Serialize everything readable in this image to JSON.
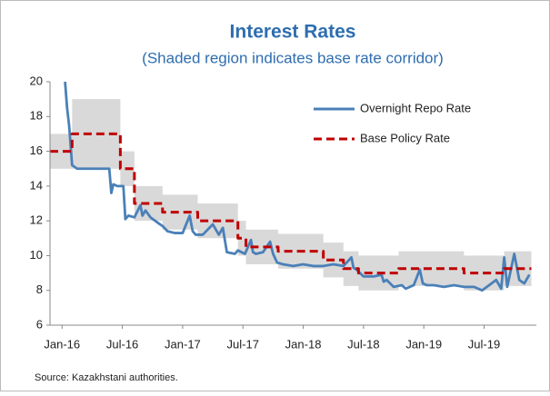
{
  "chart_data": {
    "type": "line",
    "title": "Interest Rates",
    "subtitle": "(Shaded region indicates base rate corridor)",
    "source": "Source: Kazakhstani authorities.",
    "xlim": [
      -1.2,
      47.2
    ],
    "xticks": [
      {
        "value": 0,
        "label": "Jan-16"
      },
      {
        "value": 6,
        "label": "Jul-16"
      },
      {
        "value": 12,
        "label": "Jan-17"
      },
      {
        "value": 18,
        "label": "Jul-17"
      },
      {
        "value": 24,
        "label": "Jan-18"
      },
      {
        "value": 30,
        "label": "Jul-18"
      },
      {
        "value": 36,
        "label": "Jan-19"
      },
      {
        "value": 42,
        "label": "Jul-19"
      }
    ],
    "ylim": [
      6,
      20
    ],
    "yticks": [
      6,
      8,
      10,
      12,
      14,
      16,
      18,
      20
    ],
    "legend": "upper right",
    "corridor": {
      "color": "#d9d9d9",
      "step": "post",
      "x": [
        -1.2,
        1,
        5.8,
        7.2,
        10,
        13.5,
        17.5,
        18.3,
        21.5,
        26,
        28,
        29.5,
        33.5,
        40,
        44,
        46.7
      ],
      "lower": [
        15,
        15,
        14,
        12,
        11.5,
        11,
        10,
        9.5,
        9.25,
        8.75,
        8.25,
        8,
        8.25,
        8,
        8.25,
        8.25
      ],
      "upper": [
        17,
        19,
        16,
        14,
        13.5,
        13,
        12,
        11.5,
        11.25,
        10.75,
        10.25,
        10,
        10.25,
        10,
        10.25,
        10.25
      ]
    },
    "series": [
      {
        "name": "Overnight Repo Rate",
        "color": "#4a80b8",
        "x": [
          0.3,
          0.5,
          0.7,
          1.0,
          1.5,
          3,
          4.7,
          4.9,
          5.1,
          5.5,
          6.1,
          6.3,
          6.6,
          7.2,
          7.8,
          8.0,
          8.3,
          8.8,
          9.5,
          10.0,
          10.5,
          11.2,
          12.0,
          12.7,
          13.0,
          13.3,
          14.0,
          15.0,
          15.6,
          16.0,
          16.4,
          17.2,
          17.5,
          18.2,
          18.8,
          19.0,
          19.3,
          20.0,
          20.7,
          21.0,
          21.4,
          22.0,
          23.0,
          24.0,
          25.0,
          26.0,
          27.0,
          28.0,
          28.8,
          29.0,
          29.3,
          30.0,
          31.0,
          31.8,
          32.0,
          32.3,
          33.0,
          33.8,
          34.2,
          35.0,
          35.6,
          35.9,
          36.3,
          37.0,
          38.0,
          39.0,
          40.0,
          41.0,
          41.8,
          42.5,
          43.2,
          43.7,
          44.0,
          44.3,
          45.0,
          45.5,
          46.0,
          46.5
        ],
        "values": [
          20,
          18.5,
          17.5,
          15.2,
          15,
          15,
          15,
          13.6,
          14.1,
          14,
          14,
          12.1,
          12.3,
          12.2,
          12.9,
          12.3,
          12.6,
          12.2,
          11.9,
          11.7,
          11.4,
          11.3,
          11.3,
          12.3,
          11.4,
          11.2,
          11.2,
          11.8,
          11.2,
          11.6,
          10.2,
          10.1,
          10.3,
          10.1,
          10.9,
          10.2,
          10.1,
          10.2,
          10.8,
          10.1,
          9.6,
          9.5,
          9.4,
          9.5,
          9.4,
          9.4,
          9.5,
          9.4,
          9.9,
          9.3,
          9.2,
          8.8,
          8.8,
          8.9,
          8.5,
          8.6,
          8.2,
          8.3,
          8.1,
          8.3,
          9.2,
          8.4,
          8.3,
          8.3,
          8.2,
          8.3,
          8.2,
          8.2,
          8.0,
          8.3,
          8.6,
          8.1,
          9.9,
          8.2,
          10.1,
          8.6,
          8.4,
          8.9
        ]
      },
      {
        "name": "Base Policy Rate",
        "color": "#c00000",
        "dash": true,
        "step": "post",
        "x": [
          -1.2,
          1,
          5.8,
          7.2,
          10,
          13.5,
          17.5,
          18.3,
          21.5,
          26,
          28,
          29.5,
          33.5,
          40,
          44,
          46.7
        ],
        "values": [
          16,
          17,
          15,
          13,
          12.5,
          12,
          11,
          10.5,
          10.25,
          9.75,
          9.25,
          9,
          9.25,
          9,
          9.25,
          9.25
        ]
      }
    ]
  }
}
